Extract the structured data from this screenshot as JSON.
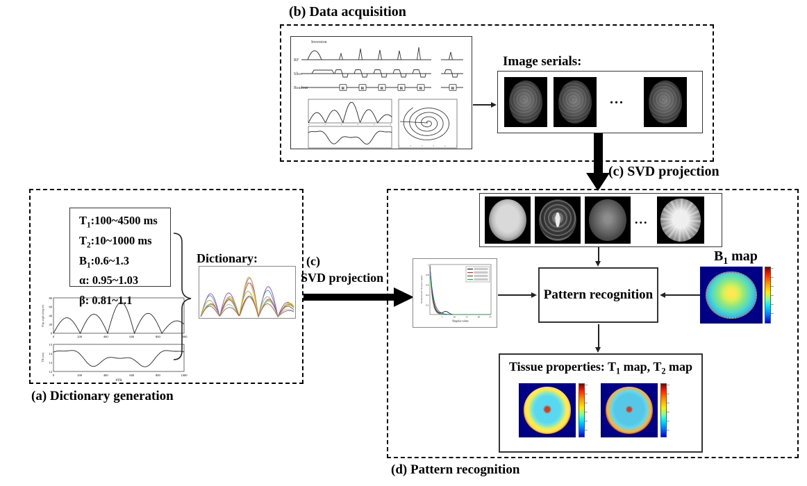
{
  "figure": {
    "panel_a": {
      "label": "(a) Dictionary generation",
      "params": [
        {
          "base": "T",
          "sub": "1",
          "rest": ":100~4500 ms"
        },
        {
          "base": "T",
          "sub": "2",
          "rest": ":10~1000 ms"
        },
        {
          "base": "B",
          "sub": "1",
          "rest": ":0.6~1.3"
        },
        {
          "base": "α",
          "sub": "",
          "rest": ": 0.95~1.03"
        },
        {
          "base": "β",
          "sub": "",
          "rest": ": 0.81~1.1"
        }
      ],
      "dictionary_label": "Dictionary:"
    },
    "panel_b": {
      "label": "(b) Data acquisition",
      "pulse": {
        "inversion": "Inversion",
        "rf": "RF",
        "slice": "Slice",
        "readout": "Readout",
        "marker": "R"
      },
      "image_serials_label": "Image serials:",
      "dots": "..."
    },
    "svd_down_label": "(c) SVD projection",
    "svd_right_label": {
      "line1": "(c)",
      "line2": "SVD projection"
    },
    "panel_d": {
      "label": "(d) Pattern recognition",
      "dots": "...",
      "pattern_recognition_label": "Pattern recognition",
      "b1_map_label": {
        "t1": "B",
        "s1": "1",
        "t2": " map"
      },
      "tissue_title": {
        "t1": "Tissue properties: T",
        "s1": "1",
        "t2": " map, T",
        "s2": "2",
        "t3": " map"
      }
    }
  },
  "charts": {
    "flip_angle": {
      "type": "line",
      "ylabel": "Flip angle (degree)",
      "xlabel": "#TR",
      "yticks": [
        "80",
        "60",
        "40",
        "20",
        "0"
      ],
      "xticks": [
        "0",
        "200",
        "400",
        "600",
        "800",
        "1000"
      ],
      "peak_heights_deg": [
        35,
        43,
        70,
        45,
        28
      ],
      "hump_boundaries_tr": [
        0,
        205,
        415,
        620,
        830,
        1060
      ],
      "xmax": 1000,
      "ymax": 80
    },
    "tr_pattern": {
      "type": "line",
      "ylabel": "TR (ms)",
      "xlabel": "#TR",
      "yticks": [
        "15",
        "14",
        "13",
        "12"
      ],
      "xticks": [
        "0",
        "200",
        "400",
        "600",
        "800",
        "1000"
      ],
      "ymin": 12,
      "ymax": 15
    },
    "dictionary_curves": {
      "type": "line",
      "colors": [
        "#a63fc8",
        "#3f8fd4",
        "#f2911e",
        "#e8c31e",
        "#7bc143",
        "#d63030",
        "#6fd0ea",
        "#c9541e"
      ]
    },
    "svd_scree": {
      "type": "line",
      "ylabel": "Normalized SVD space signal",
      "xlabel": "Singular values",
      "yticks": [
        "1",
        "0.8",
        "0.6",
        "0.4",
        "0.2"
      ],
      "xticks": [
        "5",
        "10",
        "15",
        "20",
        "25"
      ],
      "series_colors": [
        "#000000",
        "#d42a2a",
        "#2233cc",
        "#22aa33"
      ],
      "legend_entry_count": 4
    },
    "spiral_trajectory": {
      "type": "line"
    }
  },
  "colors": {
    "jet_low": "#000086",
    "jet_high": "#7f0000",
    "line": "#222222",
    "colorbar_gradient": [
      "#7f0000",
      "#ff2a00",
      "#ff9d00",
      "#ffee00",
      "#7dffa4",
      "#00e5ff",
      "#0077ff",
      "#0000c8"
    ]
  }
}
